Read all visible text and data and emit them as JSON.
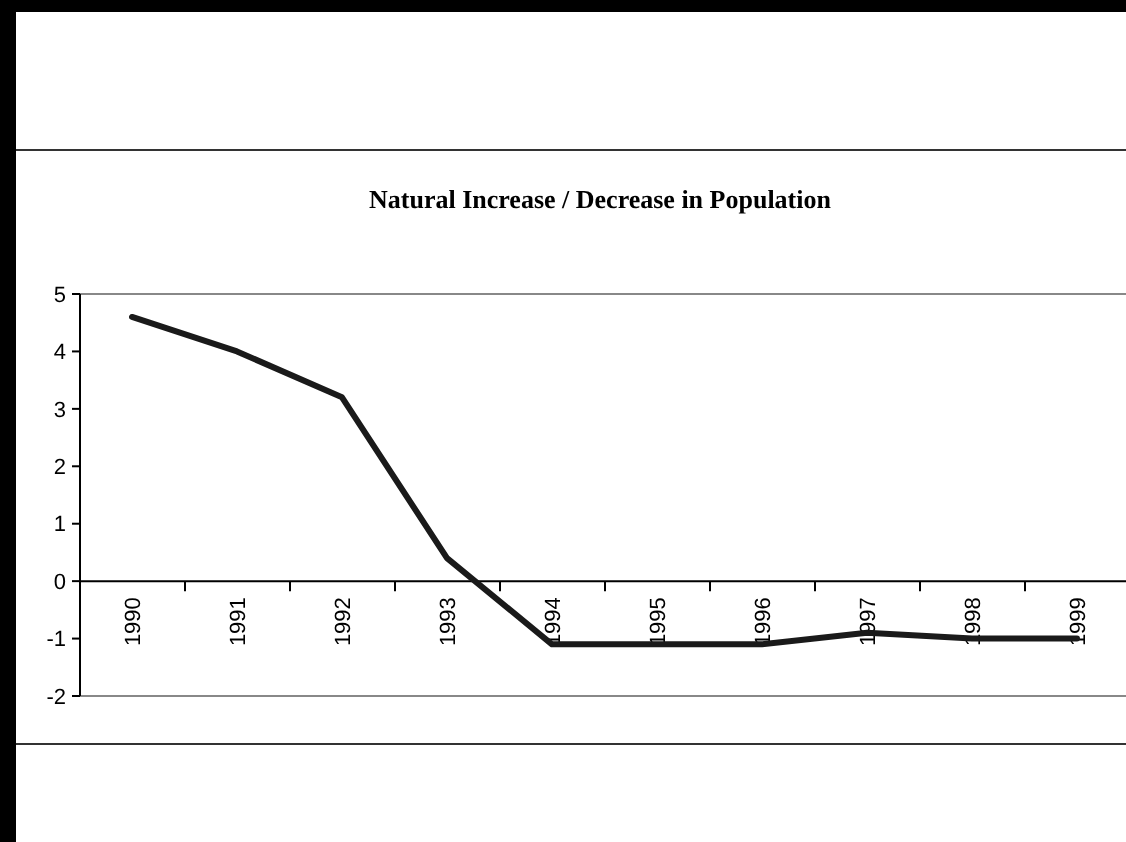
{
  "chart_data": {
    "type": "line",
    "title": "Natural Increase / Decrease in Population",
    "categories": [
      "1990",
      "1991",
      "1992",
      "1993",
      "1994",
      "1995",
      "1996",
      "1997",
      "1998",
      "1999"
    ],
    "series": [
      {
        "color": "#1a1a1a",
        "values": [
          4.6,
          4.0,
          3.2,
          0.4,
          -1.1,
          -1.1,
          -1.1,
          -0.9,
          -1.0,
          -1.0
        ]
      }
    ],
    "ylim": [
      -2,
      5
    ],
    "yticks": [
      -2,
      -1,
      0,
      1,
      2,
      3,
      4,
      5
    ],
    "grid": false,
    "marker": "none",
    "line_style": "solid"
  }
}
